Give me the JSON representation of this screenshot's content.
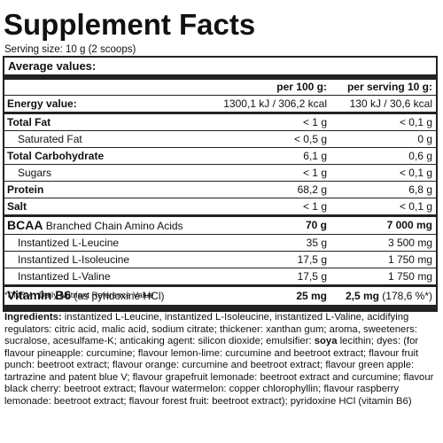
{
  "title": "Supplement Facts",
  "serving": "Serving size: 10 g (2 scoops)",
  "average_label": "Average values:",
  "columns": {
    "per100": "per 100 g:",
    "perServing": "per serving 10 g:"
  },
  "rows": [
    {
      "name": "Energy value:",
      "v1": "1300,1 kJ / 306,2 kcal",
      "v2": "130 kJ / 30,6 kcal"
    },
    {
      "name": "Total Fat",
      "v1": "< 1 g",
      "v2": "< 0,1 g"
    },
    {
      "name": "Saturated Fat",
      "v1": "< 0,5 g",
      "v2": "0 g"
    },
    {
      "name": "Total Carbohydrate",
      "v1": "6,1 g",
      "v2": "0,6 g"
    },
    {
      "name": "Sugars",
      "v1": "< 1 g",
      "v2": "< 0,1 g"
    },
    {
      "name": "Protein",
      "v1": "68,2 g",
      "v2": "6,8 g"
    },
    {
      "name": "Salt",
      "v1": "< 1 g",
      "v2": "< 0,1 g"
    }
  ],
  "bcaa": {
    "name": "BCAA",
    "desc": "Branched Chain Amino Acids",
    "v1": "70 g",
    "v2": "7 000 mg"
  },
  "amino": [
    {
      "name": "Instantized L-Leucine",
      "v1": "35 g",
      "v2": "3 500 mg"
    },
    {
      "name": "Instantized L-Isoleucine",
      "v1": "17,5 g",
      "v2": "1 750 mg"
    },
    {
      "name": "Instantized L-Valine",
      "v1": "17,5 g",
      "v2": "1 750 mg"
    }
  ],
  "vitamin": {
    "name": "Vitamin B6",
    "desc": "(as pyridoxine HCl)",
    "v1": "25 mg",
    "v2": "2,5 mg",
    "v2b": "(178,6 %*)"
  },
  "dnrv": "*DNRV - Daily Nutrient Reference Value",
  "ingredients": {
    "label": "Ingredients:",
    "part1": " instantized L-Leucine, instantized L-Isoleucine, instantized L-Valine, acidifying regulators: citric acid, malic acid, sodium citrate; thickener: xanthan gum; aroma, sweeteners: sucralose, acesulfame-K; anticaking agent: silicon dioxide; emulsifier: ",
    "bold": "soya",
    "part2": " lecithin; dyes: (for flavour pineapple: curcumine; flavour lemon-lime: curcumine and beetroot extract; flavour fruit punch: beetroot extract; flavour orange: curcumine and beetroot extract; flavour green apple: tartrazine and patent blue V; flavour grapefruit lemonade: beetroot extract and curcumine; flavour black cherry: beetroot extract; flavour watermelon: copper chlorophyllin; flavour raspberry lemonade: beetroot extract; flavour forest fruit: beetroot extract); pyridoxine HCl (vitamin B6)"
  }
}
